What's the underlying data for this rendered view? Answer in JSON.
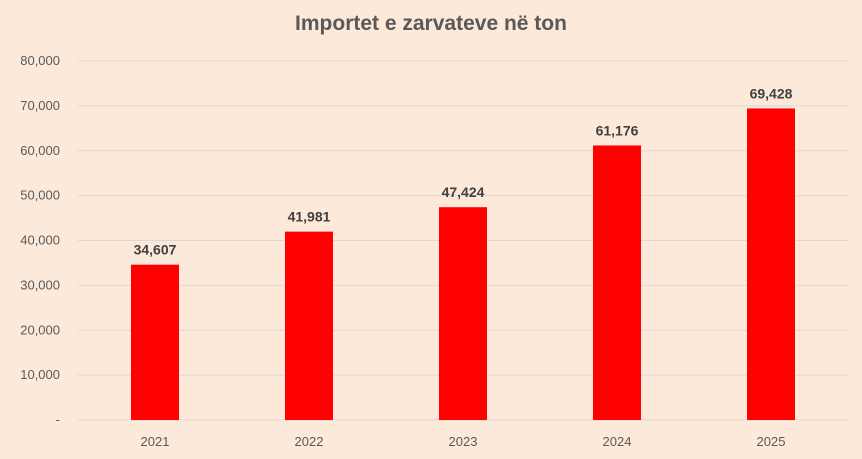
{
  "chart_data": {
    "type": "bar",
    "title": "Importet e zarvateve në ton",
    "categories": [
      "2021",
      "2022",
      "2023",
      "2024",
      "2025"
    ],
    "values": [
      34607,
      41981,
      47424,
      61176,
      69428
    ],
    "data_labels": [
      "34,607",
      "41,981",
      "47,424",
      "61,176",
      "69,428"
    ],
    "ylim": [
      0,
      80000
    ],
    "y_ticks": [
      0,
      10000,
      20000,
      30000,
      40000,
      50000,
      60000,
      70000,
      80000
    ],
    "y_tick_labels": [
      "-",
      "10,000",
      "20,000",
      "30,000",
      "40,000",
      "50,000",
      "60,000",
      "70,000",
      "80,000"
    ],
    "grid": true,
    "legend": "none",
    "xlabel": "",
    "ylabel": ""
  },
  "colors": {
    "background": "#fde9da",
    "bar": "#ff0000",
    "grid": "#d9d9d9",
    "text": "#595959",
    "data_label": "#404040"
  }
}
